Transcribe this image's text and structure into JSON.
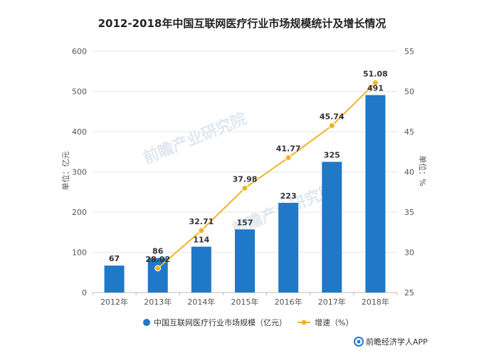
{
  "chart_data": {
    "type": "bar+line",
    "title": "2012-2018年中国互联网医疗行业市场规模统计及增长情况",
    "categories": [
      "2012年",
      "2013年",
      "2014年",
      "2015年",
      "2016年",
      "2017年",
      "2018年"
    ],
    "series": [
      {
        "name": "中国互联网医疗行业市场规模（亿元）",
        "type": "bar",
        "axis": "left",
        "values": [
          67,
          86,
          114,
          157,
          223,
          325,
          491
        ],
        "labels": [
          "67",
          "86",
          "114",
          "157",
          "223",
          "325",
          "491"
        ],
        "color": "#1f78c8"
      },
      {
        "name": "增速（%）",
        "type": "line",
        "axis": "right",
        "values": [
          null,
          28.02,
          32.71,
          37.98,
          41.77,
          45.74,
          51.08
        ],
        "labels": [
          null,
          "28.02",
          "32.71",
          "37.98",
          "41.77",
          "45.74",
          "51.08"
        ],
        "color": "#f0b429"
      }
    ],
    "y_left": {
      "label": "单位：亿元",
      "range": [
        0,
        600
      ],
      "ticks": [
        0,
        100,
        200,
        300,
        400,
        500,
        600
      ],
      "tick_labels": [
        "0",
        "100",
        "200",
        "300",
        "400",
        "500",
        "600"
      ]
    },
    "y_right": {
      "label": "单位：%",
      "range": [
        25,
        55
      ],
      "ticks": [
        25,
        30,
        35,
        40,
        45,
        50,
        55
      ],
      "tick_labels": [
        "25",
        "30",
        "35",
        "40",
        "45",
        "50",
        "55"
      ]
    },
    "grid": true,
    "legend_position": "bottom"
  },
  "watermark": {
    "text": "前瞻产业研究院"
  },
  "source": {
    "text": "前瞻经济学人APP"
  },
  "colors": {
    "grid": "#e6e6e6",
    "axis": "#bbbbbb",
    "source_icon": "#1f78c8"
  }
}
